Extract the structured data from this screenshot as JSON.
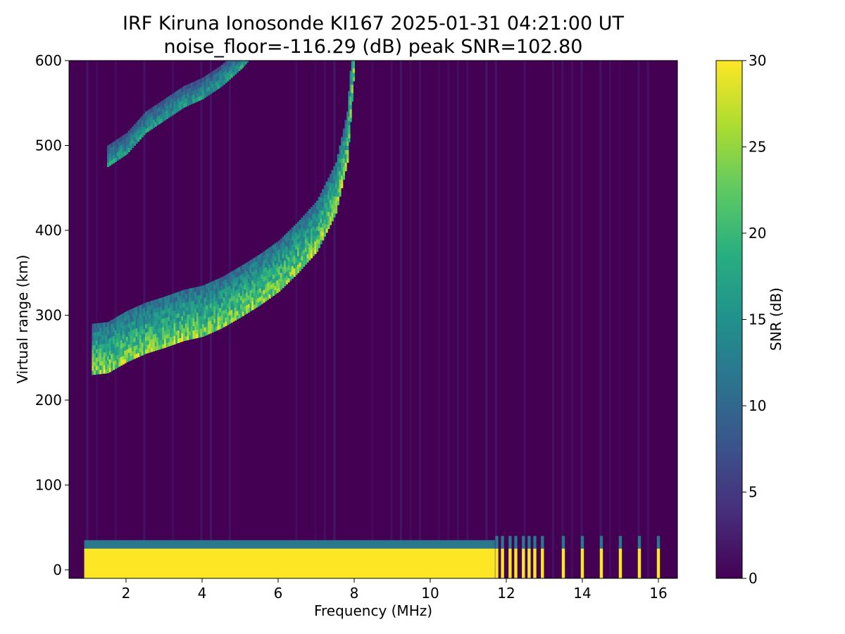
{
  "chart_data": {
    "type": "heatmap",
    "title": "IRF Kiruna Ionosonde KI167 2025-01-31 04:21:00  UT",
    "subtitle": "noise_floor=-116.29 (dB) peak SNR=102.80",
    "xlabel": "Frequency (MHz)",
    "ylabel": "Virtual range (km)",
    "xlim": [
      0.5,
      16.5
    ],
    "ylim": [
      -10,
      600
    ],
    "x_ticks": [
      "2",
      "4",
      "6",
      "8",
      "10",
      "12",
      "14",
      "16"
    ],
    "y_ticks": [
      "0",
      "100",
      "200",
      "300",
      "400",
      "500",
      "600"
    ],
    "colorbar": {
      "label": "SNR (dB)",
      "range": [
        0,
        30
      ],
      "ticks": [
        "0",
        "5",
        "10",
        "15",
        "20",
        "25",
        "30"
      ],
      "colormap": "viridis"
    },
    "background_color": "#440154",
    "features": [
      {
        "name": "Ground echo band",
        "x_range": [
          0.9,
          11.7
        ],
        "range_km": [
          0,
          35
        ],
        "snr_db": 30
      },
      {
        "name": "Discrete sounding lines",
        "x": [
          11.75,
          11.9,
          12.1,
          12.25,
          12.45,
          12.6,
          12.75,
          12.95,
          13.5,
          14.0,
          14.5,
          15.0,
          15.5,
          16.0
        ],
        "range_km": [
          0,
          35
        ]
      },
      {
        "name": "F-region trace",
        "points": [
          [
            1.1,
            230
          ],
          [
            1.5,
            232
          ],
          [
            2.0,
            245
          ],
          [
            2.5,
            255
          ],
          [
            3.0,
            262
          ],
          [
            3.5,
            270
          ],
          [
            4.0,
            275
          ],
          [
            4.5,
            285
          ],
          [
            5.0,
            298
          ],
          [
            5.5,
            312
          ],
          [
            6.0,
            328
          ],
          [
            6.5,
            350
          ],
          [
            7.0,
            375
          ],
          [
            7.5,
            420
          ],
          [
            7.8,
            480
          ],
          [
            8.0,
            600
          ]
        ],
        "snr_db": 30
      },
      {
        "name": "Multi-hop echo",
        "points": [
          [
            1.5,
            475
          ],
          [
            2.0,
            490
          ],
          [
            2.5,
            515
          ],
          [
            3.0,
            530
          ],
          [
            3.5,
            545
          ],
          [
            4.0,
            555
          ],
          [
            4.5,
            570
          ],
          [
            5.0,
            590
          ],
          [
            5.2,
            600
          ]
        ],
        "snr_db": 20
      }
    ]
  }
}
